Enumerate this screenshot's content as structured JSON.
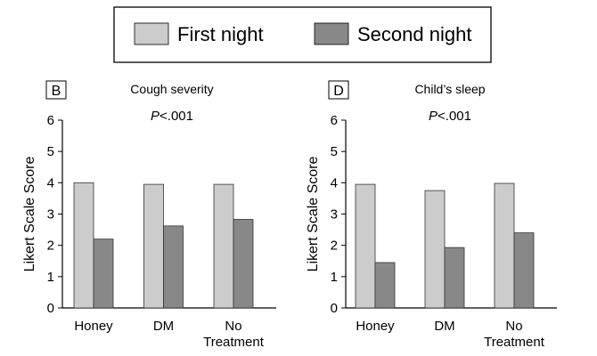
{
  "legend": {
    "items": [
      {
        "label": "First night",
        "color": "#cccccc"
      },
      {
        "label": "Second night",
        "color": "#888888"
      }
    ]
  },
  "chart_data": [
    {
      "type": "bar",
      "panel_label": "B",
      "title": "Cough severity",
      "annotation": {
        "prefix": "P",
        "rest": "<.001"
      },
      "ylabel": "Likert Scale Score",
      "ylim": [
        0,
        6
      ],
      "yticks": [
        "0",
        "1",
        "2",
        "3",
        "4",
        "5",
        "6"
      ],
      "categories": [
        [
          "Honey"
        ],
        [
          "DM"
        ],
        [
          "No",
          "Treatment"
        ]
      ],
      "series": [
        {
          "name": "First night",
          "color": "#cccccc",
          "values": [
            4.0,
            3.95,
            3.95
          ]
        },
        {
          "name": "Second night",
          "color": "#888888",
          "values": [
            2.2,
            2.62,
            2.83
          ]
        }
      ],
      "grid": false,
      "legend_position": "top"
    },
    {
      "type": "bar",
      "panel_label": "D",
      "title": "Child’s sleep",
      "annotation": {
        "prefix": "P",
        "rest": "<.001"
      },
      "ylabel": "Likert Scale Score",
      "ylim": [
        0,
        6
      ],
      "yticks": [
        "0",
        "1",
        "2",
        "3",
        "4",
        "5",
        "6"
      ],
      "categories": [
        [
          "Honey"
        ],
        [
          "DM"
        ],
        [
          "No",
          "Treatment"
        ]
      ],
      "series": [
        {
          "name": "First night",
          "color": "#cccccc",
          "values": [
            3.95,
            3.75,
            3.98
          ]
        },
        {
          "name": "Second night",
          "color": "#888888",
          "values": [
            1.45,
            1.93,
            2.4
          ]
        }
      ],
      "grid": false,
      "legend_position": "top"
    }
  ]
}
